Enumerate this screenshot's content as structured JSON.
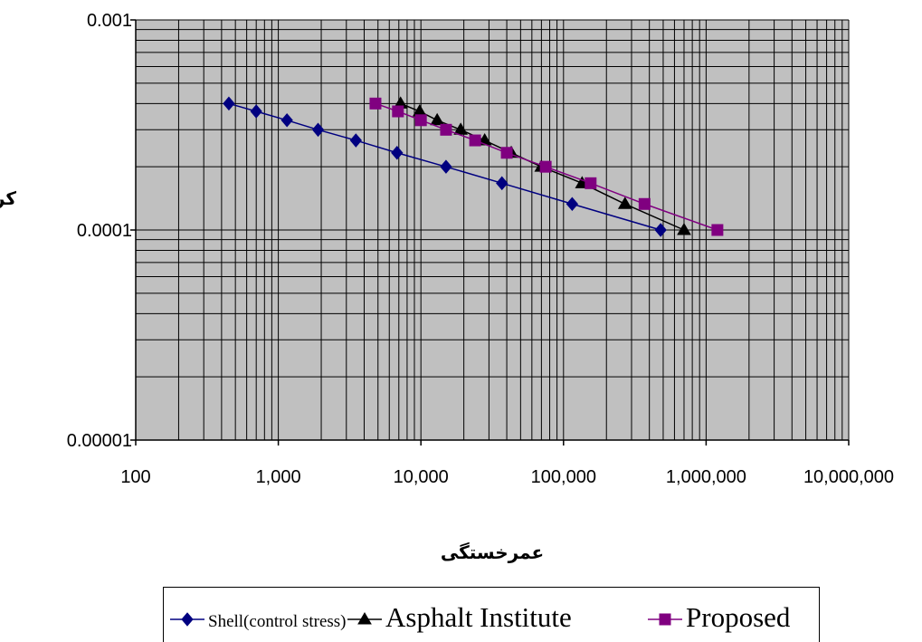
{
  "chart_data": {
    "type": "line",
    "xlabel": "عمرخستگی",
    "ylabel": "کرنش کششی",
    "x_scale": "log",
    "y_scale": "log",
    "xlim": [
      100,
      10000000
    ],
    "ylim": [
      1e-05,
      0.001
    ],
    "x_ticks": [
      100,
      1000,
      10000,
      100000,
      1000000,
      10000000
    ],
    "x_tick_labels": [
      "100",
      "1,000",
      "10,000",
      "100,000",
      "1,000,000",
      "10,000,000"
    ],
    "y_ticks": [
      1e-05,
      0.0001,
      0.001
    ],
    "y_tick_labels": [
      "0.00001",
      "0.0001",
      "0.001"
    ],
    "grid": true,
    "plot_background": "#c0c0c0",
    "legend_position": "bottom",
    "series": [
      {
        "name": "Shell(control stress)",
        "color": "#000080",
        "marker": "diamond",
        "x": [
          450,
          700,
          1150,
          1900,
          3500,
          6800,
          15000,
          37000,
          115000,
          480000
        ],
        "y": [
          0.0004,
          0.000367,
          0.000333,
          0.0003,
          0.000267,
          0.000233,
          0.0002,
          0.000167,
          0.000133,
          0.0001
        ]
      },
      {
        "name": "Asphalt Institute",
        "color": "#000000",
        "marker": "triangle",
        "x": [
          7200,
          9800,
          13000,
          19000,
          28000,
          43000,
          70000,
          135000,
          270000,
          700000
        ],
        "y": [
          0.0004,
          0.000367,
          0.000333,
          0.0003,
          0.000267,
          0.000233,
          0.0002,
          0.000167,
          0.000133,
          0.0001
        ]
      },
      {
        "name": "Proposed",
        "color": "#800080",
        "marker": "square",
        "x": [
          4800,
          6900,
          10000,
          15000,
          24000,
          40000,
          75000,
          155000,
          370000,
          1200000
        ],
        "y": [
          0.0004,
          0.000367,
          0.000333,
          0.0003,
          0.000267,
          0.000233,
          0.0002,
          0.000167,
          0.000133,
          0.0001
        ]
      }
    ]
  }
}
